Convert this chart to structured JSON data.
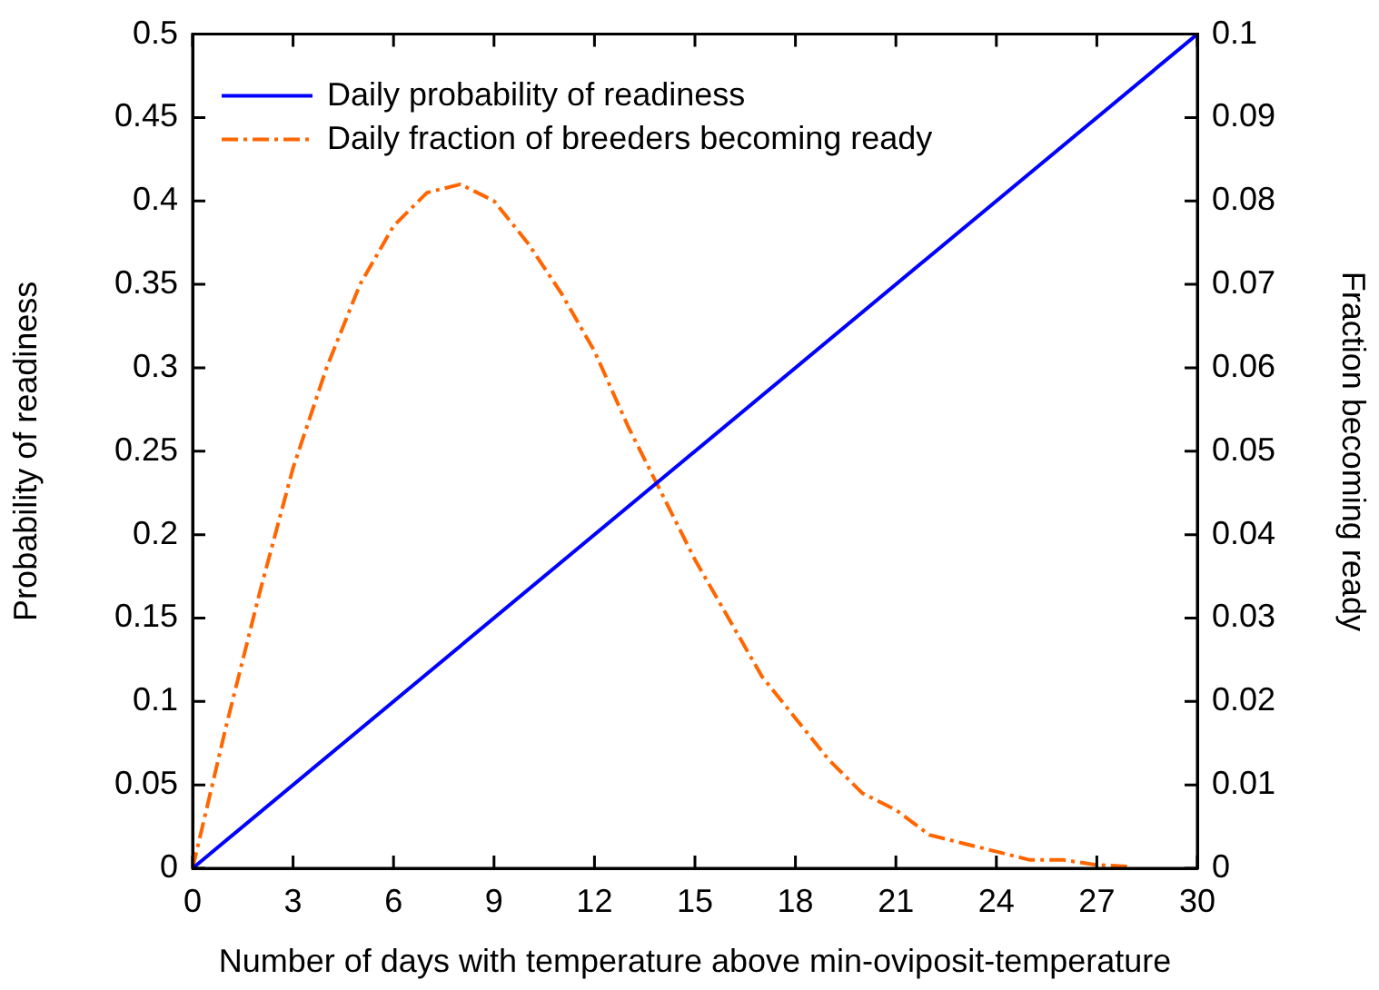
{
  "chart_data": {
    "type": "line",
    "xlabel": "Number of days with temperature above min-oviposit-temperature",
    "ylabel": "Probability of readiness",
    "y2label": "Fraction becoming ready",
    "x": [
      0,
      1,
      2,
      3,
      4,
      5,
      6,
      7,
      8,
      9,
      10,
      11,
      12,
      13,
      14,
      15,
      16,
      17,
      18,
      19,
      20,
      21,
      22,
      23,
      24,
      25,
      26,
      27,
      28
    ],
    "series": [
      {
        "name": "Daily probability of readiness",
        "color": "#0000ff",
        "x": [
          0,
          30
        ],
        "values": [
          0,
          0.5
        ],
        "line_style": "solid"
      },
      {
        "name": "Daily fraction of breeders becoming ready",
        "color": "#ff6600",
        "axis": "y2",
        "line_style": "dashed",
        "values": [
          0,
          0.017,
          0.033,
          0.048,
          0.06,
          0.07,
          0.077,
          0.081,
          0.082,
          0.08,
          0.075,
          0.069,
          0.062,
          0.053,
          0.045,
          0.037,
          0.03,
          0.023,
          0.018,
          0.013,
          0.009,
          0.007,
          0.004,
          0.003,
          0.002,
          0.001,
          0.001,
          0.0004,
          0.0002
        ]
      }
    ],
    "xlim": [
      0,
      30
    ],
    "xticks": [
      0,
      3,
      6,
      9,
      12,
      15,
      18,
      21,
      24,
      27,
      30
    ],
    "ylim": [
      0,
      0.5
    ],
    "yticks": [
      0,
      0.05,
      0.1,
      0.15,
      0.2,
      0.25,
      0.3,
      0.35,
      0.4,
      0.45,
      0.5
    ],
    "y2lim": [
      0,
      0.1
    ],
    "y2ticks": [
      0,
      0.01,
      0.02,
      0.03,
      0.04,
      0.05,
      0.06,
      0.07,
      0.08,
      0.09,
      0.1
    ],
    "grid": false,
    "legend": "top left",
    "marker": "none"
  }
}
